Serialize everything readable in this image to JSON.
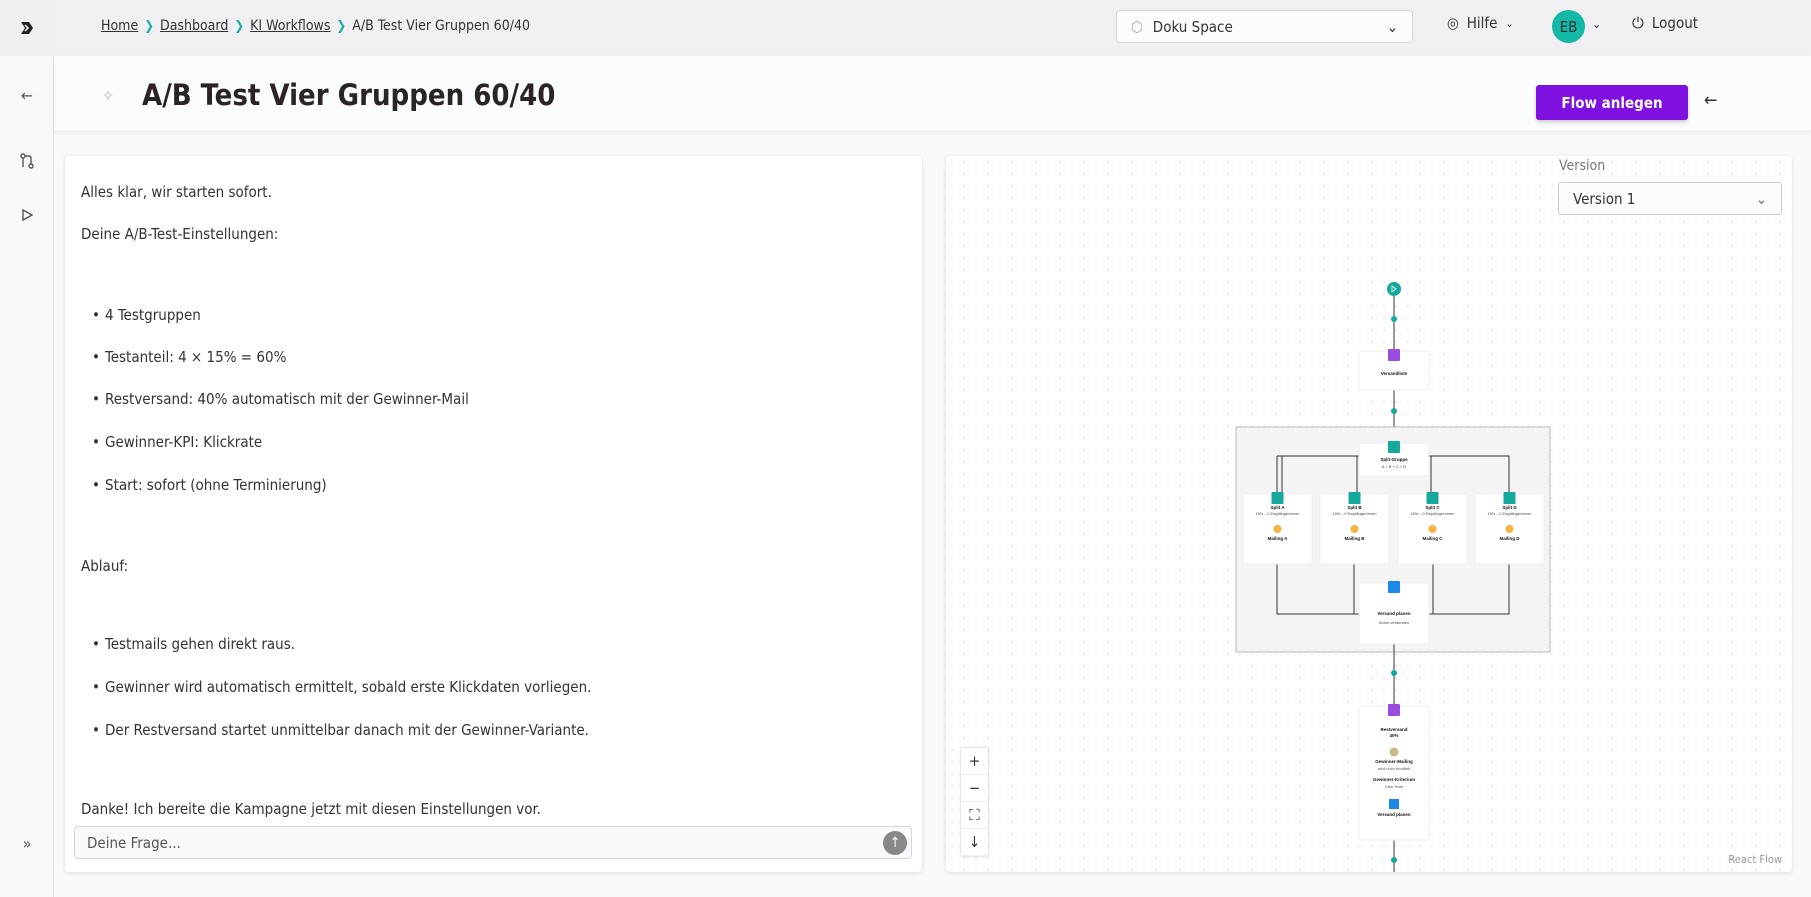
{
  "breadcrumb": {
    "items": [
      "Home",
      "Dashboard",
      "KI Workflows"
    ],
    "current": "A/B Test Vier Gruppen 60/40"
  },
  "topbar": {
    "space": "Doku Space",
    "help": "Hilfe",
    "avatar": "EB",
    "logout": "Logout"
  },
  "page": {
    "title": "A/B Test Vier Gruppen 60/40",
    "create_flow": "Flow anlegen"
  },
  "chat": {
    "messages": [
      {
        "text": "Alles klar, wir starten sofort.",
        "li": false
      },
      {
        "text": "Deine A/B-Test-Einstellungen:",
        "li": false
      },
      {
        "text": "4 Testgruppen",
        "li": true
      },
      {
        "text": "Testanteil: 4 × 15% = 60%",
        "li": true
      },
      {
        "text": "Restversand: 40% automatisch mit der Gewinner-Mail",
        "li": true
      },
      {
        "text": "Gewinner-KPI: Klickrate",
        "li": true
      },
      {
        "text": "Start: sofort (ohne Terminierung)",
        "li": true
      },
      {
        "text": "Ablauf:",
        "li": false
      },
      {
        "text": "Testmails gehen direkt raus.",
        "li": true
      },
      {
        "text": "Gewinner wird automatisch ermittelt, sobald erste Klickdaten vorliegen.",
        "li": true
      },
      {
        "text": "Der Restversand startet unmittelbar danach mit der Gewinner-Variante.",
        "li": true
      },
      {
        "text": "Danke! Ich bereite die Kampagne jetzt mit diesen Einstellungen vor.",
        "li": false
      }
    ],
    "placeholder": "Deine Frage..."
  },
  "flow": {
    "version_label": "Version",
    "version": "Version 1",
    "attribution": "React Flow",
    "versandliste": "Versandliste",
    "split_group": {
      "title": "Split-Gruppe",
      "sub": "A + B + C + D"
    },
    "splits": [
      {
        "title": "Split A",
        "sub": "15% – 0 Empfänger:innen",
        "mailing": "Mailing A"
      },
      {
        "title": "Split B",
        "sub": "15% – 0 Empfänger:innen",
        "mailing": "Mailing B"
      },
      {
        "title": "Split C",
        "sub": "15% – 0 Empfänger:innen",
        "mailing": "Mailing C"
      },
      {
        "title": "Split D",
        "sub": "15% – 0 Empfänger:innen",
        "mailing": "Mailing D"
      }
    ],
    "versand_planen": {
      "title": "Versand planen",
      "sub": "Sofort versenden"
    },
    "rest": {
      "title": "Restversand",
      "pct": "40%",
      "winner": "Gewinner-Mailing",
      "winner_sub": "wird noch ermittelt",
      "criterion": "Gewinner-Kriterium",
      "criterion_sub": "Klick Rate",
      "plan": "Versand planen"
    },
    "colors": {
      "teal": "#14a99c",
      "purple": "#9b4be0",
      "blue": "#1e88e5",
      "accent": "#7e10e0"
    }
  }
}
